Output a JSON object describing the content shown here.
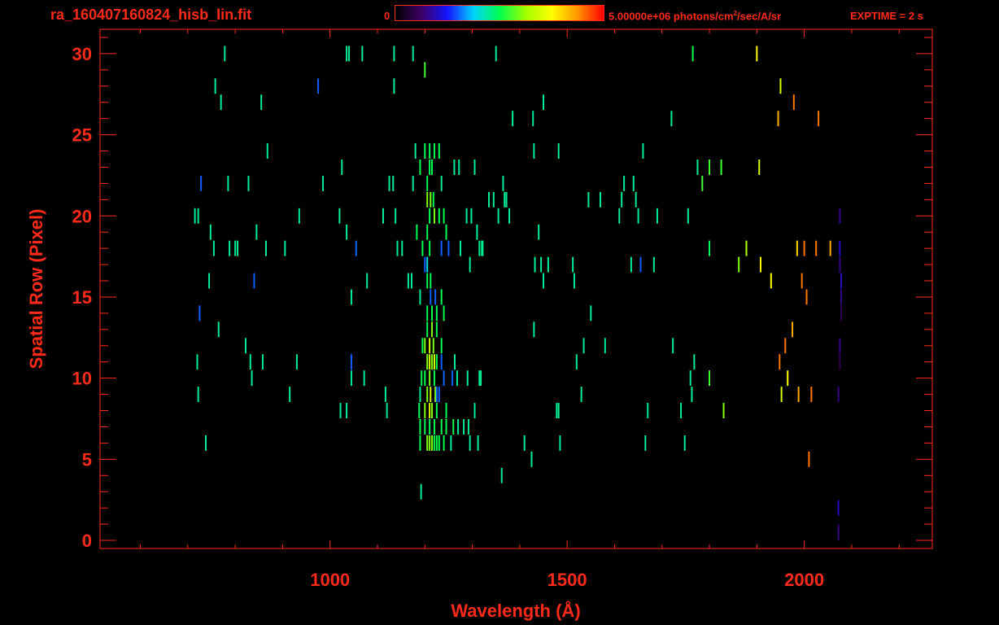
{
  "header": {
    "file_name": "ra_160407160824_hisb_lin.fit",
    "colorbar_min": "0",
    "colorbar_max_value": "5.00000e+06 photons/cm",
    "colorbar_max_sup": "2",
    "colorbar_max_rest": "/sec/A/sr",
    "exptime": "EXPTIME = 2 s"
  },
  "colors": {
    "axis": "#ff2a1a",
    "background": "#000000",
    "colormap": [
      "#000000",
      "#3c0064",
      "#1414ff",
      "#00d2ff",
      "#00ff50",
      "#a0ff00",
      "#ffff00",
      "#ff9600",
      "#ff0000"
    ]
  },
  "chart_data": {
    "type": "heatmap",
    "title": "ra_160407160824_hisb_lin.fit",
    "xlabel": "Wavelength (Å)",
    "ylabel": "Spatial Row (Pixel)",
    "xlim": [
      515,
      2270
    ],
    "ylim": [
      -0.5,
      31.5
    ],
    "x_ticks": [
      1000,
      1500,
      2000
    ],
    "y_ticks": [
      0,
      5,
      10,
      15,
      20,
      25,
      30
    ],
    "colorbar_range": [
      0,
      5000000
    ],
    "colorbar_unit": "photons/cm^2/sec/A/sr",
    "exptime_s": 2,
    "events": [
      [
        1205,
        6,
        0.6
      ],
      [
        1210,
        6,
        0.6
      ],
      [
        1215,
        6,
        0.6
      ],
      [
        1220,
        6,
        0.5
      ],
      [
        1225,
        6,
        0.5
      ],
      [
        1230,
        6,
        0.5
      ],
      [
        1200,
        7,
        0.5
      ],
      [
        1210,
        7,
        0.5
      ],
      [
        1220,
        7,
        0.5
      ],
      [
        1235,
        7,
        0.5
      ],
      [
        1245,
        7,
        0.5
      ],
      [
        1260,
        7,
        0.5
      ],
      [
        1200,
        8,
        0.6
      ],
      [
        1210,
        8,
        0.7
      ],
      [
        1215,
        8,
        0.6
      ],
      [
        1225,
        8,
        0.5
      ],
      [
        1205,
        9,
        0.6
      ],
      [
        1212,
        9,
        0.7
      ],
      [
        1222,
        9,
        0.6
      ],
      [
        1200,
        10,
        0.5
      ],
      [
        1210,
        10,
        0.6
      ],
      [
        1220,
        10,
        0.5
      ],
      [
        1205,
        11,
        0.6
      ],
      [
        1210,
        11,
        0.7
      ],
      [
        1215,
        11,
        0.6
      ],
      [
        1220,
        11,
        0.7
      ],
      [
        1225,
        11,
        0.5
      ],
      [
        1200,
        12,
        0.6
      ],
      [
        1210,
        12,
        0.7
      ],
      [
        1218,
        12,
        0.6
      ],
      [
        1205,
        13,
        0.5
      ],
      [
        1215,
        13,
        0.6
      ],
      [
        1225,
        13,
        0.5
      ],
      [
        1205,
        14,
        0.5
      ],
      [
        1215,
        14,
        0.5
      ],
      [
        1225,
        14,
        0.5
      ],
      [
        1205,
        16,
        0.5
      ],
      [
        1212,
        16,
        0.5
      ],
      [
        1205,
        17,
        0.4
      ],
      [
        1210,
        18,
        0.5
      ],
      [
        1205,
        19,
        0.5
      ],
      [
        1210,
        20,
        0.5
      ],
      [
        1220,
        20,
        0.6
      ],
      [
        1230,
        20,
        0.5
      ],
      [
        1205,
        21,
        0.6
      ],
      [
        1212,
        21,
        0.6
      ],
      [
        1218,
        21,
        0.5
      ],
      [
        1205,
        22,
        0.5
      ],
      [
        1210,
        23,
        0.5
      ],
      [
        1215,
        23,
        0.5
      ],
      [
        1200,
        24,
        0.5
      ],
      [
        1210,
        24,
        0.5
      ],
      [
        1220,
        24,
        0.5
      ],
      [
        1192,
        3,
        0.45
      ],
      [
        1190,
        6,
        0.5
      ],
      [
        1190,
        7,
        0.5
      ],
      [
        1188,
        8,
        0.5
      ],
      [
        1190,
        9,
        0.45
      ],
      [
        1193,
        10,
        0.5
      ],
      [
        1195,
        12,
        0.5
      ],
      [
        1190,
        15,
        0.45
      ],
      [
        1195,
        18,
        0.5
      ],
      [
        1183,
        19,
        0.5
      ],
      [
        1190,
        23,
        0.5
      ],
      [
        1180,
        24,
        0.45
      ],
      [
        1200,
        29,
        0.55
      ],
      [
        1240,
        6,
        0.5
      ],
      [
        1245,
        8,
        0.5
      ],
      [
        1240,
        10,
        0.3
      ],
      [
        1235,
        12,
        0.5
      ],
      [
        1240,
        14,
        0.5
      ],
      [
        1235,
        15,
        0.5
      ],
      [
        1245,
        19,
        0.5
      ],
      [
        1240,
        20,
        0.5
      ],
      [
        1235,
        22,
        0.45
      ],
      [
        1230,
        24,
        0.5
      ],
      [
        1225,
        9,
        0.3
      ],
      [
        1235,
        11,
        0.3
      ],
      [
        1212,
        15,
        0.3
      ],
      [
        1222,
        15,
        0.3
      ],
      [
        1235,
        18,
        0.3
      ],
      [
        1250,
        18,
        0.3
      ],
      [
        1200,
        17,
        0.3
      ],
      [
        1230,
        9,
        0.3
      ],
      [
        715,
        20,
        0.45
      ],
      [
        720,
        11,
        0.45
      ],
      [
        722,
        9,
        0.45
      ],
      [
        722,
        20,
        0.45
      ],
      [
        725,
        14,
        0.3
      ],
      [
        728,
        22,
        0.3
      ],
      [
        738,
        6,
        0.45
      ],
      [
        745,
        16,
        0.45
      ],
      [
        748,
        19,
        0.45
      ],
      [
        755,
        18,
        0.45
      ],
      [
        758,
        28,
        0.45
      ],
      [
        765,
        13,
        0.45
      ],
      [
        770,
        27,
        0.45
      ],
      [
        778,
        30,
        0.45
      ],
      [
        785,
        22,
        0.45
      ],
      [
        788,
        18,
        0.45
      ],
      [
        800,
        18,
        0.45
      ],
      [
        805,
        18,
        0.45
      ],
      [
        822,
        12,
        0.45
      ],
      [
        828,
        22,
        0.45
      ],
      [
        832,
        11,
        0.45
      ],
      [
        835,
        10,
        0.45
      ],
      [
        840,
        16,
        0.3
      ],
      [
        845,
        19,
        0.45
      ],
      [
        855,
        27,
        0.45
      ],
      [
        858,
        11,
        0.45
      ],
      [
        865,
        18,
        0.45
      ],
      [
        868,
        24,
        0.45
      ],
      [
        905,
        18,
        0.45
      ],
      [
        915,
        9,
        0.45
      ],
      [
        930,
        11,
        0.45
      ],
      [
        935,
        20,
        0.45
      ],
      [
        975,
        28,
        0.3
      ],
      [
        985,
        22,
        0.45
      ],
      [
        1020,
        20,
        0.45
      ],
      [
        1022,
        8,
        0.45
      ],
      [
        1025,
        23,
        0.45
      ],
      [
        1035,
        19,
        0.45
      ],
      [
        1035,
        8,
        0.45
      ],
      [
        1035,
        30,
        0.45
      ],
      [
        1040,
        30,
        0.45
      ],
      [
        1045,
        11,
        0.3
      ],
      [
        1045,
        10,
        0.45
      ],
      [
        1045,
        15,
        0.45
      ],
      [
        1055,
        18,
        0.3
      ],
      [
        1068,
        30,
        0.45
      ],
      [
        1072,
        10,
        0.45
      ],
      [
        1078,
        16,
        0.45
      ],
      [
        1112,
        20,
        0.45
      ],
      [
        1117,
        9,
        0.45
      ],
      [
        1120,
        8,
        0.45
      ],
      [
        1125,
        22,
        0.45
      ],
      [
        1133,
        22,
        0.45
      ],
      [
        1135,
        28,
        0.45
      ],
      [
        1135,
        30,
        0.45
      ],
      [
        1138,
        20,
        0.45
      ],
      [
        1142,
        18,
        0.45
      ],
      [
        1152,
        18,
        0.45
      ],
      [
        1165,
        16,
        0.45
      ],
      [
        1172,
        16,
        0.45
      ],
      [
        1175,
        30,
        0.45
      ],
      [
        1175,
        22,
        0.45
      ],
      [
        1255,
        6,
        0.45
      ],
      [
        1258,
        10,
        0.3
      ],
      [
        1262,
        23,
        0.45
      ],
      [
        1263,
        11,
        0.45
      ],
      [
        1268,
        10,
        0.45
      ],
      [
        1270,
        7,
        0.45
      ],
      [
        1272,
        23,
        0.45
      ],
      [
        1275,
        18,
        0.45
      ],
      [
        1282,
        7,
        0.45
      ],
      [
        1288,
        20,
        0.45
      ],
      [
        1290,
        10,
        0.45
      ],
      [
        1292,
        7,
        0.45
      ],
      [
        1295,
        6,
        0.45
      ],
      [
        1295,
        17,
        0.45
      ],
      [
        1298,
        20,
        0.45
      ],
      [
        1305,
        8,
        0.45
      ],
      [
        1305,
        23,
        0.45
      ],
      [
        1310,
        19,
        0.45
      ],
      [
        1312,
        6,
        0.45
      ],
      [
        1315,
        18,
        0.45
      ],
      [
        1315,
        10,
        0.45
      ],
      [
        1318,
        10,
        0.45
      ],
      [
        1320,
        18,
        0.45
      ],
      [
        1322,
        18,
        0.45
      ],
      [
        1335,
        21,
        0.45
      ],
      [
        1345,
        21,
        0.45
      ],
      [
        1350,
        30,
        0.45
      ],
      [
        1355,
        20,
        0.45
      ],
      [
        1362,
        4,
        0.45
      ],
      [
        1365,
        22,
        0.45
      ],
      [
        1368,
        21,
        0.45
      ],
      [
        1372,
        21,
        0.45
      ],
      [
        1378,
        20,
        0.45
      ],
      [
        1385,
        26,
        0.45
      ],
      [
        1410,
        6,
        0.45
      ],
      [
        1425,
        5,
        0.45
      ],
      [
        1428,
        26,
        0.45
      ],
      [
        1430,
        24,
        0.45
      ],
      [
        1430,
        13,
        0.45
      ],
      [
        1432,
        17,
        0.45
      ],
      [
        1440,
        19,
        0.45
      ],
      [
        1445,
        17,
        0.45
      ],
      [
        1450,
        16,
        0.45
      ],
      [
        1450,
        27,
        0.45
      ],
      [
        1460,
        17,
        0.45
      ],
      [
        1478,
        8,
        0.45
      ],
      [
        1482,
        8,
        0.45
      ],
      [
        1485,
        6,
        0.45
      ],
      [
        1482,
        24,
        0.45
      ],
      [
        1512,
        17,
        0.45
      ],
      [
        1515,
        16,
        0.45
      ],
      [
        1520,
        11,
        0.45
      ],
      [
        1530,
        9,
        0.45
      ],
      [
        1535,
        12,
        0.45
      ],
      [
        1545,
        21,
        0.45
      ],
      [
        1550,
        14,
        0.45
      ],
      [
        1570,
        21,
        0.45
      ],
      [
        1580,
        12,
        0.45
      ],
      [
        1610,
        20,
        0.45
      ],
      [
        1615,
        21,
        0.45
      ],
      [
        1620,
        22,
        0.45
      ],
      [
        1635,
        17,
        0.45
      ],
      [
        1640,
        22,
        0.45
      ],
      [
        1645,
        21,
        0.45
      ],
      [
        1650,
        20,
        0.45
      ],
      [
        1655,
        17,
        0.3
      ],
      [
        1660,
        24,
        0.45
      ],
      [
        1665,
        6,
        0.45
      ],
      [
        1670,
        8,
        0.45
      ],
      [
        1683,
        17,
        0.45
      ],
      [
        1690,
        20,
        0.45
      ],
      [
        1720,
        26,
        0.45
      ],
      [
        1723,
        12,
        0.45
      ],
      [
        1740,
        8,
        0.45
      ],
      [
        1748,
        6,
        0.45
      ],
      [
        1755,
        20,
        0.45
      ],
      [
        1760,
        10,
        0.45
      ],
      [
        1763,
        9,
        0.45
      ],
      [
        1765,
        30,
        0.5
      ],
      [
        1768,
        11,
        0.45
      ],
      [
        1775,
        23,
        0.45
      ],
      [
        1785,
        22,
        0.55
      ],
      [
        1800,
        18,
        0.5
      ],
      [
        1800,
        23,
        0.55
      ],
      [
        1800,
        10,
        0.55
      ],
      [
        1825,
        23,
        0.55
      ],
      [
        1830,
        8,
        0.6
      ],
      [
        1862,
        17,
        0.6
      ],
      [
        1878,
        18,
        0.65
      ],
      [
        1900,
        30,
        0.75
      ],
      [
        1905,
        23,
        0.7
      ],
      [
        1908,
        17,
        0.75
      ],
      [
        1930,
        16,
        0.75
      ],
      [
        1945,
        26,
        0.85
      ],
      [
        1948,
        11,
        0.9
      ],
      [
        1950,
        28,
        0.7
      ],
      [
        1952,
        9,
        0.7
      ],
      [
        1960,
        12,
        0.9
      ],
      [
        1965,
        10,
        0.75
      ],
      [
        1975,
        13,
        0.85
      ],
      [
        1978,
        27,
        0.9
      ],
      [
        1985,
        18,
        0.8
      ],
      [
        1988,
        9,
        0.85
      ],
      [
        1995,
        16,
        0.9
      ],
      [
        2000,
        18,
        0.9
      ],
      [
        2005,
        15,
        0.9
      ],
      [
        2010,
        5,
        0.9
      ],
      [
        2015,
        9,
        0.9
      ],
      [
        2025,
        18,
        0.9
      ],
      [
        2030,
        26,
        0.9
      ],
      [
        2055,
        18,
        0.85
      ],
      [
        2072,
        0.5,
        0.15
      ],
      [
        2072,
        2,
        0.2
      ],
      [
        2075,
        20,
        0.15
      ],
      [
        2075,
        17,
        0.15
      ],
      [
        2075,
        12,
        0.15
      ],
      [
        2072,
        9,
        0.15
      ],
      [
        2075,
        11,
        0.1
      ],
      [
        2078,
        15,
        0.15
      ],
      [
        2078,
        14,
        0.1
      ],
      [
        2078,
        16,
        0.2
      ],
      [
        2075,
        18,
        0.2
      ]
    ]
  }
}
